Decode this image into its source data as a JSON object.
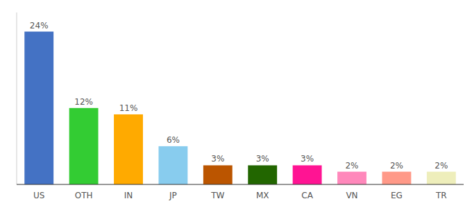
{
  "chart_data": {
    "type": "bar",
    "categories": [
      "US",
      "OTH",
      "IN",
      "JP",
      "TW",
      "MX",
      "CA",
      "VN",
      "EG",
      "TR"
    ],
    "values": [
      24,
      12,
      11,
      6,
      3,
      3,
      3,
      2,
      2,
      2
    ],
    "value_labels": [
      "24%",
      "12%",
      "11%",
      "6%",
      "3%",
      "3%",
      "3%",
      "2%",
      "2%",
      "2%"
    ],
    "colors": [
      "#4472c4",
      "#33cc33",
      "#ffaa00",
      "#88ccee",
      "#bb5500",
      "#226600",
      "#ff1493",
      "#ff88bb",
      "#ff9988",
      "#eeeebb"
    ],
    "ylim": [
      0,
      27
    ],
    "data_labels": true,
    "tick_labels": "x",
    "grid": false
  }
}
